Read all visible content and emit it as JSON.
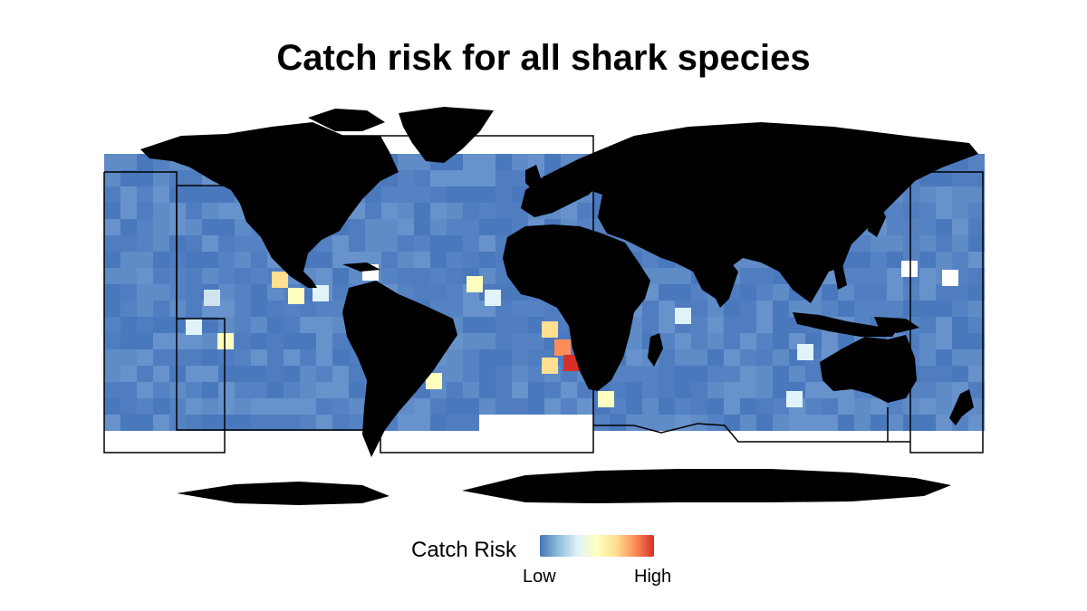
{
  "title": "Catch risk for all shark species",
  "legend": {
    "title": "Catch Risk",
    "low_label": "Low",
    "high_label": "High",
    "gradient": [
      "#4575b4",
      "#91bfdb",
      "#e0f3f8",
      "#ffffbf",
      "#fee090",
      "#fc8d59",
      "#d73027"
    ]
  },
  "colors": {
    "ocean_none": "#ffffff",
    "land": "#000000",
    "region_outline": "#000000"
  }
}
